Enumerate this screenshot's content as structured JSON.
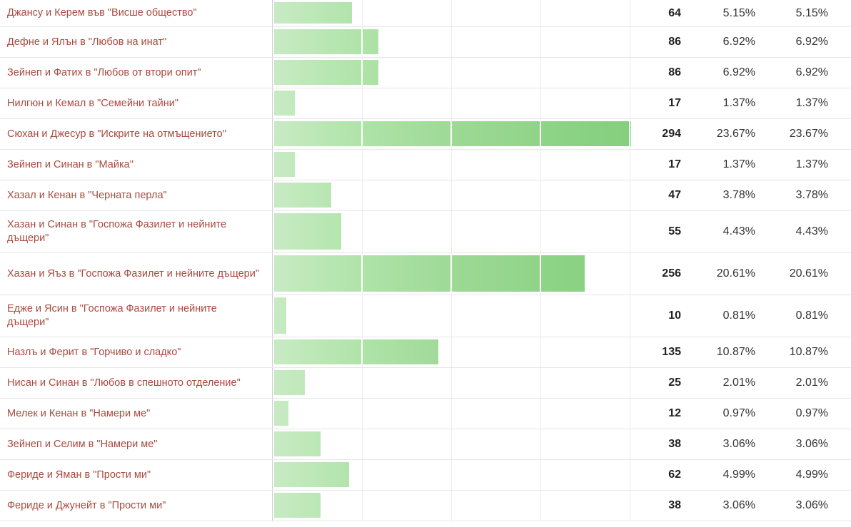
{
  "chart_data": {
    "type": "bar",
    "orientation": "horizontal",
    "title": "",
    "xlabel": "",
    "ylabel": "",
    "bar_scale_max": 294,
    "grid": true,
    "bar_color": "#a9e0a2",
    "label_color": "#a84a3f",
    "rows": [
      {
        "label": "Джансу и Керем във \"Висше общество\"",
        "votes": 64,
        "percent": "5.15%",
        "percent2": "5.15%"
      },
      {
        "label": "Дефне и Ялън в \"Любов на инат\"",
        "votes": 86,
        "percent": "6.92%",
        "percent2": "6.92%"
      },
      {
        "label": "Зейнеп и Фатих в \"Любов от втори опит\"",
        "votes": 86,
        "percent": "6.92%",
        "percent2": "6.92%"
      },
      {
        "label": "Нилгюн и Кемал в \"Семейни тайни\"",
        "votes": 17,
        "percent": "1.37%",
        "percent2": "1.37%"
      },
      {
        "label": "Сюхан и Джесур в \"Искрите на отмъщението\"",
        "votes": 294,
        "percent": "23.67%",
        "percent2": "23.67%"
      },
      {
        "label": "Зейнеп и Синан в \"Майка\"",
        "votes": 17,
        "percent": "1.37%",
        "percent2": "1.37%"
      },
      {
        "label": "Хазал и Кенан в \"Черната перла\"",
        "votes": 47,
        "percent": "3.78%",
        "percent2": "3.78%"
      },
      {
        "label": "Хазан и Синан в \"Госпожа Фазилет и нейните дъщери\"",
        "votes": 55,
        "percent": "4.43%",
        "percent2": "4.43%"
      },
      {
        "label": "Хазан и Яъз в \"Госпожа Фазилет и нейните дъщери\"",
        "votes": 256,
        "percent": "20.61%",
        "percent2": "20.61%"
      },
      {
        "label": "Едже и Ясин в \"Госпожа Фазилет и нейните дъщери\"",
        "votes": 10,
        "percent": "0.81%",
        "percent2": "0.81%"
      },
      {
        "label": "Назлъ и Ферит в \"Горчиво и сладко\"",
        "votes": 135,
        "percent": "10.87%",
        "percent2": "10.87%"
      },
      {
        "label": "Нисан и Синан в \"Любов в спешното отделение\"",
        "votes": 25,
        "percent": "2.01%",
        "percent2": "2.01%"
      },
      {
        "label": "Мелек и Кенан в \"Намери ме\"",
        "votes": 12,
        "percent": "0.97%",
        "percent2": "0.97%"
      },
      {
        "label": "Зейнеп и Селим в \"Намери ме\"",
        "votes": 38,
        "percent": "3.06%",
        "percent2": "3.06%"
      },
      {
        "label": "Фериде и Яман в \"Прости ми\"",
        "votes": 62,
        "percent": "4.99%",
        "percent2": "4.99%"
      },
      {
        "label": "Фериде и Джунейт в \"Прости ми\"",
        "votes": 38,
        "percent": "3.06%",
        "percent2": "3.06%"
      }
    ]
  }
}
